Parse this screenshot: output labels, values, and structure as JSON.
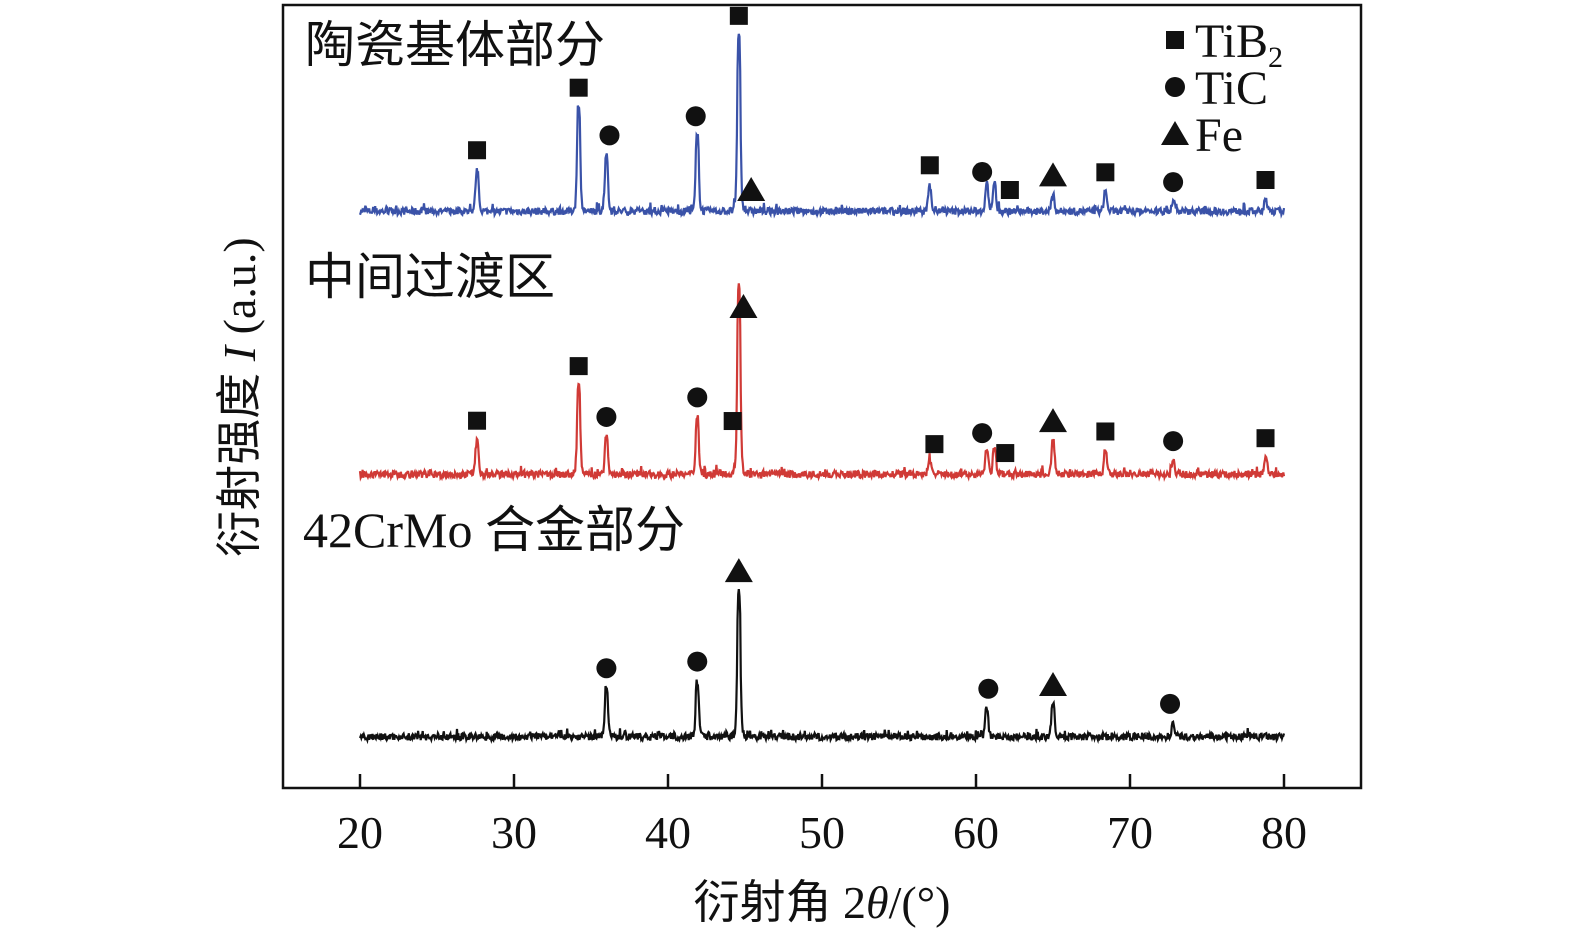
{
  "chart_data": {
    "type": "line",
    "title": "",
    "xlabel_prefix": "衍射角 2",
    "xlabel_symbol": "θ",
    "xlabel_suffix": "/(°)",
    "ylabel_prefix": "衍射强度 ",
    "ylabel_symbol": "I",
    "ylabel_suffix": " (a.u.)",
    "xlim": [
      15,
      85
    ],
    "ylim": [
      0,
      100
    ],
    "xticks": [
      20,
      30,
      40,
      50,
      60,
      70,
      80
    ],
    "yticks_shown": false,
    "grid": false,
    "data_x_range": [
      20,
      80
    ],
    "legend": {
      "placement": "top-right",
      "entries": [
        {
          "phase": "TiB2",
          "label": "TiB",
          "sub": "2",
          "marker": "square"
        },
        {
          "phase": "TiC",
          "label": "TiC",
          "sub": "",
          "marker": "circle"
        },
        {
          "phase": "Fe",
          "label": "Fe",
          "sub": "",
          "marker": "triangle"
        }
      ]
    },
    "series": [
      {
        "name": "陶瓷基体部分",
        "color": "#3a52a8",
        "baseline": 73.2,
        "peaks": [
          {
            "x": 27.6,
            "y": 78.3
          },
          {
            "x": 34.2,
            "y": 86.3
          },
          {
            "x": 36.0,
            "y": 80.2
          },
          {
            "x": 41.9,
            "y": 82.8
          },
          {
            "x": 44.6,
            "y": 95.5
          },
          {
            "x": 57.0,
            "y": 76.4
          },
          {
            "x": 60.7,
            "y": 76.6
          },
          {
            "x": 61.2,
            "y": 76.7
          },
          {
            "x": 65.0,
            "y": 75.1
          },
          {
            "x": 68.4,
            "y": 75.7
          },
          {
            "x": 72.8,
            "y": 74.5
          },
          {
            "x": 78.8,
            "y": 74.5
          }
        ],
        "markers": [
          {
            "x": 27.6,
            "phase": "TiB2"
          },
          {
            "x": 34.2,
            "phase": "TiB2"
          },
          {
            "x": 36.2,
            "phase": "TiC"
          },
          {
            "x": 41.8,
            "phase": "TiC"
          },
          {
            "x": 44.6,
            "phase": "TiB2"
          },
          {
            "x": 45.4,
            "phase": "Fe"
          },
          {
            "x": 57.0,
            "phase": "TiB2"
          },
          {
            "x": 60.4,
            "phase": "TiC"
          },
          {
            "x": 62.2,
            "phase": "TiB2"
          },
          {
            "x": 65.0,
            "phase": "Fe"
          },
          {
            "x": 68.4,
            "phase": "TiB2"
          },
          {
            "x": 72.8,
            "phase": "TiC"
          },
          {
            "x": 78.8,
            "phase": "TiB2"
          }
        ]
      },
      {
        "name": "中间过渡区",
        "color": "#d03a36",
        "baseline": 39.6,
        "peaks": [
          {
            "x": 27.6,
            "y": 43.8
          },
          {
            "x": 34.2,
            "y": 50.8
          },
          {
            "x": 36.0,
            "y": 44.4
          },
          {
            "x": 41.9,
            "y": 47.0
          },
          {
            "x": 44.6,
            "y": 63.9
          },
          {
            "x": 57.0,
            "y": 41.3
          },
          {
            "x": 60.7,
            "y": 42.5
          },
          {
            "x": 61.2,
            "y": 42.9
          },
          {
            "x": 65.0,
            "y": 43.8
          },
          {
            "x": 68.4,
            "y": 42.5
          },
          {
            "x": 72.8,
            "y": 41.3
          },
          {
            "x": 78.8,
            "y": 41.6
          }
        ],
        "markers": [
          {
            "x": 27.6,
            "phase": "TiB2"
          },
          {
            "x": 34.2,
            "phase": "TiB2"
          },
          {
            "x": 36.0,
            "phase": "TiC"
          },
          {
            "x": 41.9,
            "phase": "TiC"
          },
          {
            "x": 44.2,
            "phase": "TiB2"
          },
          {
            "x": 44.9,
            "phase": "Fe"
          },
          {
            "x": 57.3,
            "phase": "TiB2"
          },
          {
            "x": 60.4,
            "phase": "TiC"
          },
          {
            "x": 61.9,
            "phase": "TiB2"
          },
          {
            "x": 65.0,
            "phase": "Fe"
          },
          {
            "x": 68.4,
            "phase": "TiB2"
          },
          {
            "x": 72.8,
            "phase": "TiC"
          },
          {
            "x": 78.8,
            "phase": "TiB2"
          }
        ]
      },
      {
        "name": "42CrMo 合金部分",
        "color": "#111111",
        "baseline": 6.1,
        "peaks": [
          {
            "x": 36.0,
            "y": 12.5
          },
          {
            "x": 41.9,
            "y": 13.1
          },
          {
            "x": 44.6,
            "y": 24.6
          },
          {
            "x": 60.7,
            "y": 9.6
          },
          {
            "x": 65.0,
            "y": 10.6
          },
          {
            "x": 72.8,
            "y": 7.7
          }
        ],
        "markers": [
          {
            "x": 36.0,
            "phase": "TiC"
          },
          {
            "x": 41.9,
            "phase": "TiC"
          },
          {
            "x": 44.6,
            "phase": "Fe"
          },
          {
            "x": 60.8,
            "phase": "TiC"
          },
          {
            "x": 65.0,
            "phase": "Fe"
          },
          {
            "x": 72.6,
            "phase": "TiC"
          }
        ]
      }
    ]
  }
}
